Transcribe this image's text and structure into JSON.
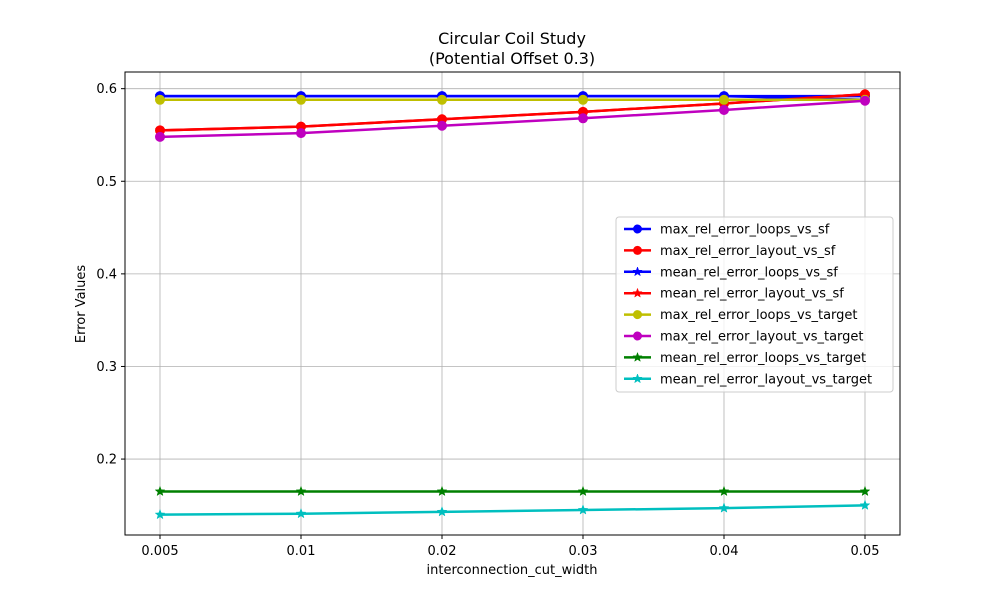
{
  "chart_data": {
    "type": "line",
    "title": "Circular Coil Study",
    "subtitle": "(Potential Offset 0.3)",
    "xlabel": "interconnection_cut_width",
    "ylabel": "Error Values",
    "x_scale": "categorical",
    "categories": [
      "0.005",
      "0.01",
      "0.02",
      "0.03",
      "0.04",
      "0.05"
    ],
    "ylim": [
      0.118,
      0.618
    ],
    "yticks": [
      0.2,
      0.3,
      0.4,
      0.5,
      0.6
    ],
    "ytick_labels": [
      "0.2",
      "0.3",
      "0.4",
      "0.5",
      "0.6"
    ],
    "grid": true,
    "legend_position": "center-right",
    "series": [
      {
        "name": "max_rel_error_loops_vs_sf",
        "color": "#0000ff",
        "marker": "circle",
        "values": [
          0.592,
          0.592,
          0.592,
          0.592,
          0.592,
          0.592
        ]
      },
      {
        "name": "max_rel_error_layout_vs_sf",
        "color": "#ff0000",
        "marker": "circle",
        "values": [
          0.555,
          0.559,
          0.567,
          0.575,
          0.584,
          0.594
        ]
      },
      {
        "name": "mean_rel_error_loops_vs_sf",
        "color": "#0000ff",
        "marker": "star",
        "values": [
          0.592,
          0.592,
          0.592,
          0.592,
          0.592,
          0.588
        ]
      },
      {
        "name": "mean_rel_error_layout_vs_sf",
        "color": "#ff0000",
        "marker": "star",
        "values": [
          0.555,
          0.559,
          0.567,
          0.575,
          0.584,
          0.594
        ]
      },
      {
        "name": "max_rel_error_loops_vs_target",
        "color": "#bfbf00",
        "marker": "circle",
        "values": [
          0.588,
          0.588,
          0.588,
          0.588,
          0.588,
          0.588
        ]
      },
      {
        "name": "max_rel_error_layout_vs_target",
        "color": "#bf00bf",
        "marker": "circle",
        "values": [
          0.548,
          0.552,
          0.56,
          0.568,
          0.577,
          0.587
        ]
      },
      {
        "name": "mean_rel_error_loops_vs_target",
        "color": "#008000",
        "marker": "star",
        "values": [
          0.165,
          0.165,
          0.165,
          0.165,
          0.165,
          0.165
        ]
      },
      {
        "name": "mean_rel_error_layout_vs_target",
        "color": "#00bfbf",
        "marker": "star",
        "values": [
          0.14,
          0.141,
          0.143,
          0.145,
          0.147,
          0.15
        ]
      }
    ]
  }
}
